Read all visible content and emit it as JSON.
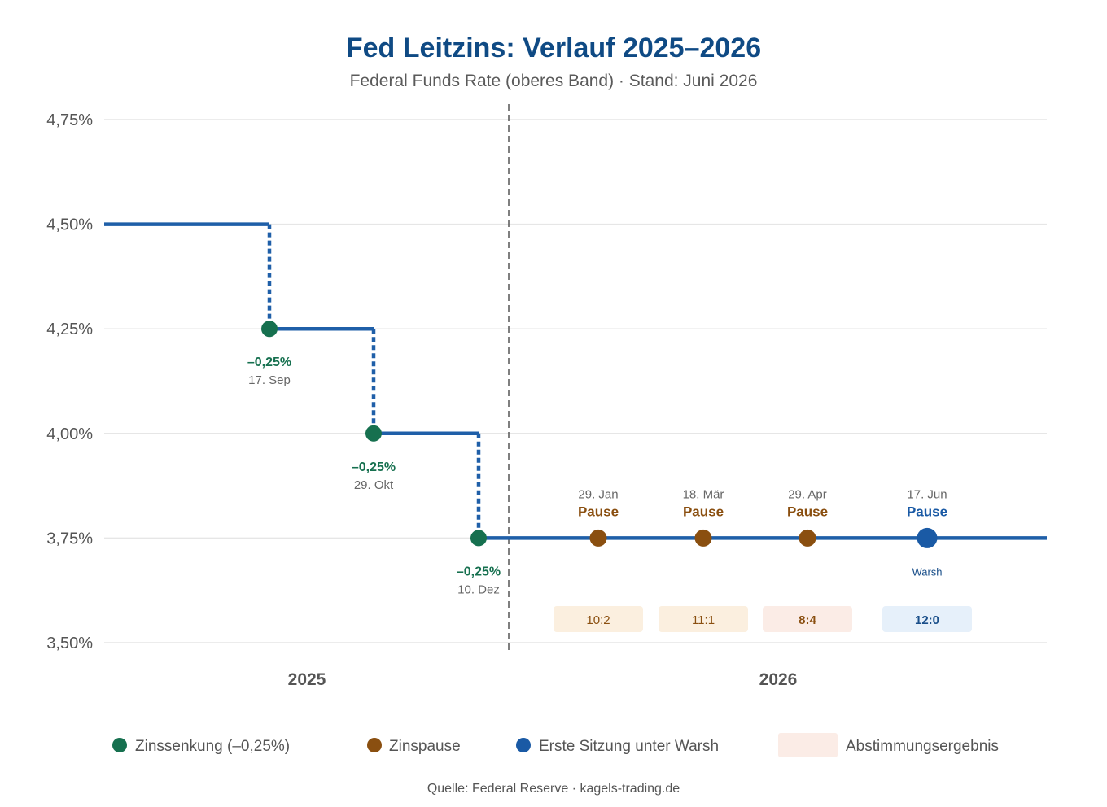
{
  "title": "Fed Leitzins: Verlauf 2025–2026",
  "subtitle": "Federal Funds Rate (oberes Band) · Stand: Juni 2026",
  "source": "Quelle: Federal Reserve · kagels-trading.de",
  "colors": {
    "line": "#1f5fa8",
    "cut": "#16704f",
    "pause": "#8a4f10",
    "warsh": "#1a5aa5",
    "title": "#0f4a84",
    "grid": "#e6e6e6"
  },
  "chart_data": {
    "type": "line",
    "step": true,
    "ylim": [
      3.5,
      4.75
    ],
    "yticks": [
      {
        "value": 4.75,
        "label": "4,75%"
      },
      {
        "value": 4.5,
        "label": "4,50%"
      },
      {
        "value": 4.25,
        "label": "4,25%"
      },
      {
        "value": 4.0,
        "label": "4,00%"
      },
      {
        "value": 3.75,
        "label": "3,75%"
      },
      {
        "value": 3.5,
        "label": "3,50%"
      }
    ],
    "grid": true,
    "year_labels": [
      "2025",
      "2026"
    ],
    "series": [
      {
        "name": "Federal Funds Rate (oberes Band)",
        "x": [
          "2025-01-01",
          "2025-09-17",
          "2025-10-29",
          "2025-12-10",
          "2026-01-29",
          "2026-03-18",
          "2026-04-29",
          "2026-06-17",
          "2026-12-31"
        ],
        "y": [
          4.5,
          4.25,
          4.0,
          3.75,
          3.75,
          3.75,
          3.75,
          3.75,
          3.75
        ]
      }
    ],
    "events": [
      {
        "date": "2025-09-17",
        "rate": 4.25,
        "kind": "cut",
        "change": "–0,25%",
        "date_label": "17. Sep"
      },
      {
        "date": "2025-10-29",
        "rate": 4.0,
        "kind": "cut",
        "change": "–0,25%",
        "date_label": "29. Okt"
      },
      {
        "date": "2025-12-10",
        "rate": 3.75,
        "kind": "cut",
        "change": "–0,25%",
        "date_label": "10. Dez"
      },
      {
        "date": "2026-01-29",
        "rate": 3.75,
        "kind": "pause",
        "status": "Pause",
        "date_label": "29. Jan",
        "vote": "10:2"
      },
      {
        "date": "2026-03-18",
        "rate": 3.75,
        "kind": "pause",
        "status": "Pause",
        "date_label": "18. Mär",
        "vote": "11:1"
      },
      {
        "date": "2026-04-29",
        "rate": 3.75,
        "kind": "pause",
        "status": "Pause",
        "date_label": "29. Apr",
        "vote": "8:4"
      },
      {
        "date": "2026-06-17",
        "rate": 3.75,
        "kind": "warsh",
        "status": "Pause",
        "date_label": "17. Jun",
        "note": "Warsh",
        "vote": "12:0"
      }
    ],
    "legend": [
      {
        "kind": "cut",
        "label": "Zinssenkung (–0,25%)"
      },
      {
        "kind": "pause",
        "label": "Zinspause"
      },
      {
        "kind": "warsh",
        "label": "Erste Sitzung unter Warsh"
      },
      {
        "kind": "vote",
        "label": "Abstimmungsergebnis"
      }
    ],
    "legend_position": "bottom"
  }
}
